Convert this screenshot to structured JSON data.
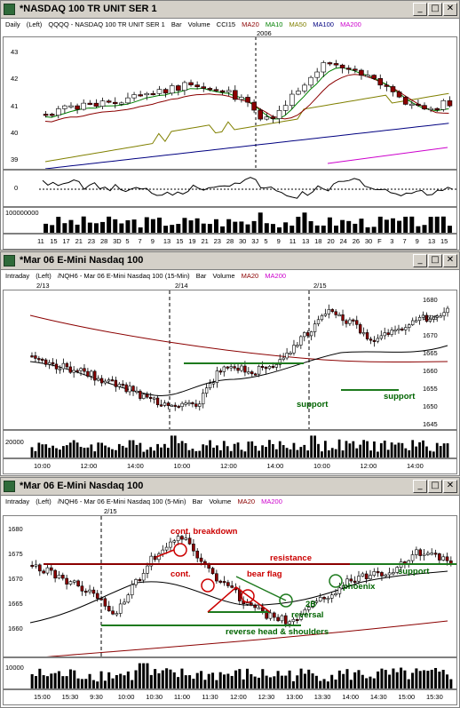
{
  "colors": {
    "ma20": "#8b0000",
    "ma10": "#008000",
    "ma50": "#808000",
    "ma100": "#000080",
    "ma200": "#cc00cc",
    "up": "#ffffff",
    "down": "#8b0000",
    "ann_red": "#cc0000",
    "ann_green": "#006400"
  },
  "window1": {
    "title": "*NASDAQ 100 TR UNIT SER 1",
    "header": {
      "interval": "Daily",
      "scale": "(Left)",
      "desc": "QQQQ - NASDAQ 100 TR UNIT SER 1",
      "bar": "Bar",
      "volume": "Volume",
      "cci": "CCI15",
      "ma20": "MA20",
      "ma10": "MA10",
      "ma50": "MA50",
      "ma100": "MA100",
      "ma200": "MA200"
    },
    "year_label": "2006",
    "price_ticks": [
      "43",
      "42",
      "41",
      "40",
      "39"
    ],
    "cci_tick": "0",
    "vol_tick": "100000000",
    "dates": [
      "11",
      "15",
      "17",
      "21",
      "23",
      "28",
      "3D",
      "5",
      "7",
      "9",
      "13",
      "15",
      "19",
      "21",
      "23",
      "28",
      "30",
      "3J",
      "5",
      "9",
      "11",
      "13",
      "18",
      "20",
      "24",
      "26",
      "30",
      "F",
      "3",
      "7",
      "9",
      "13",
      "15"
    ]
  },
  "window2": {
    "title": "*Mar 06 E-Mini Nasdaq 100",
    "header": {
      "interval": "Intraday",
      "scale": "(Left)",
      "desc": "/NQH6 - Mar 06 E-Mini Nasdaq 100 (15-Min)",
      "bar": "Bar",
      "volume": "Volume",
      "ma20": "MA20",
      "ma200": "MA200"
    },
    "sessions": [
      "2/13",
      "2/14",
      "2/15"
    ],
    "price_ticks": [
      "1680",
      "1675",
      "1670",
      "1665",
      "1660",
      "1655",
      "1650",
      "1645"
    ],
    "vol_tick": "20000",
    "times": [
      "10:00",
      "12:00",
      "14:00",
      "10:00",
      "12:00",
      "14:00",
      "10:00",
      "12:00",
      "14:00"
    ],
    "annotations": {
      "support1": "support",
      "support2": "support"
    }
  },
  "window3": {
    "title": "*Mar 06 E-Mini Nasdaq 100",
    "header": {
      "interval": "Intraday",
      "scale": "(Left)",
      "desc": "/NQH6 - Mar 06 E-Mini Nasdaq 100 (5-Min)",
      "bar": "Bar",
      "volume": "Volume",
      "ma20": "MA20",
      "ma200": "MA200"
    },
    "session": "2/15",
    "price_ticks": [
      "1680",
      "1675",
      "1670",
      "1665",
      "1660"
    ],
    "vol_tick": "10000",
    "times": [
      "15:00",
      "15:30",
      "9:30",
      "10:00",
      "10:30",
      "11:00",
      "11:30",
      "12:00",
      "12:30",
      "13:00",
      "13:30",
      "14:00",
      "14:30",
      "15:00",
      "15:30"
    ],
    "annotations": {
      "breakdown": "cont. breakdown",
      "cont": "cont.",
      "resistance": "resistance",
      "bear_flag": "bear flag",
      "phoenix": "phoenix",
      "support": "support",
      "twob": "2B",
      "reversal": "reversal",
      "rhs": "reverse head & shoulders"
    }
  }
}
